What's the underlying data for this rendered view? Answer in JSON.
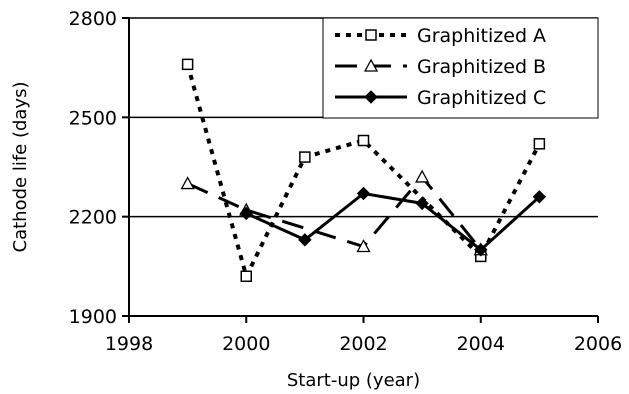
{
  "chart_data": {
    "type": "line",
    "xlabel": "Start-up (year)",
    "ylabel": "Cathode life (days)",
    "xlim": [
      1998,
      2006
    ],
    "ylim": [
      1900,
      2800
    ],
    "xticks": [
      1998,
      2000,
      2002,
      2004,
      2006
    ],
    "yticks": [
      1900,
      2200,
      2500,
      2800
    ],
    "grid": "horizontal",
    "legend_position": "top-right",
    "series": [
      {
        "name": "Graphitized A",
        "marker": "square",
        "line_style": "dotted",
        "color": "#000000",
        "x": [
          1999,
          2000,
          2001,
          2002,
          2004,
          2005
        ],
        "y": [
          2660,
          2020,
          2380,
          2430,
          2080,
          2420
        ]
      },
      {
        "name": "Graphitized B",
        "marker": "triangle",
        "line_style": "dashed",
        "color": "#000000",
        "x": [
          1999,
          2000,
          2002,
          2003,
          2004
        ],
        "y": [
          2300,
          2220,
          2110,
          2320,
          2100
        ]
      },
      {
        "name": "Graphitized C",
        "marker": "diamond",
        "line_style": "solid",
        "color": "#000000",
        "x": [
          2000,
          2001,
          2002,
          2003,
          2004,
          2005
        ],
        "y": [
          2210,
          2130,
          2270,
          2240,
          2100,
          2260
        ]
      }
    ]
  }
}
